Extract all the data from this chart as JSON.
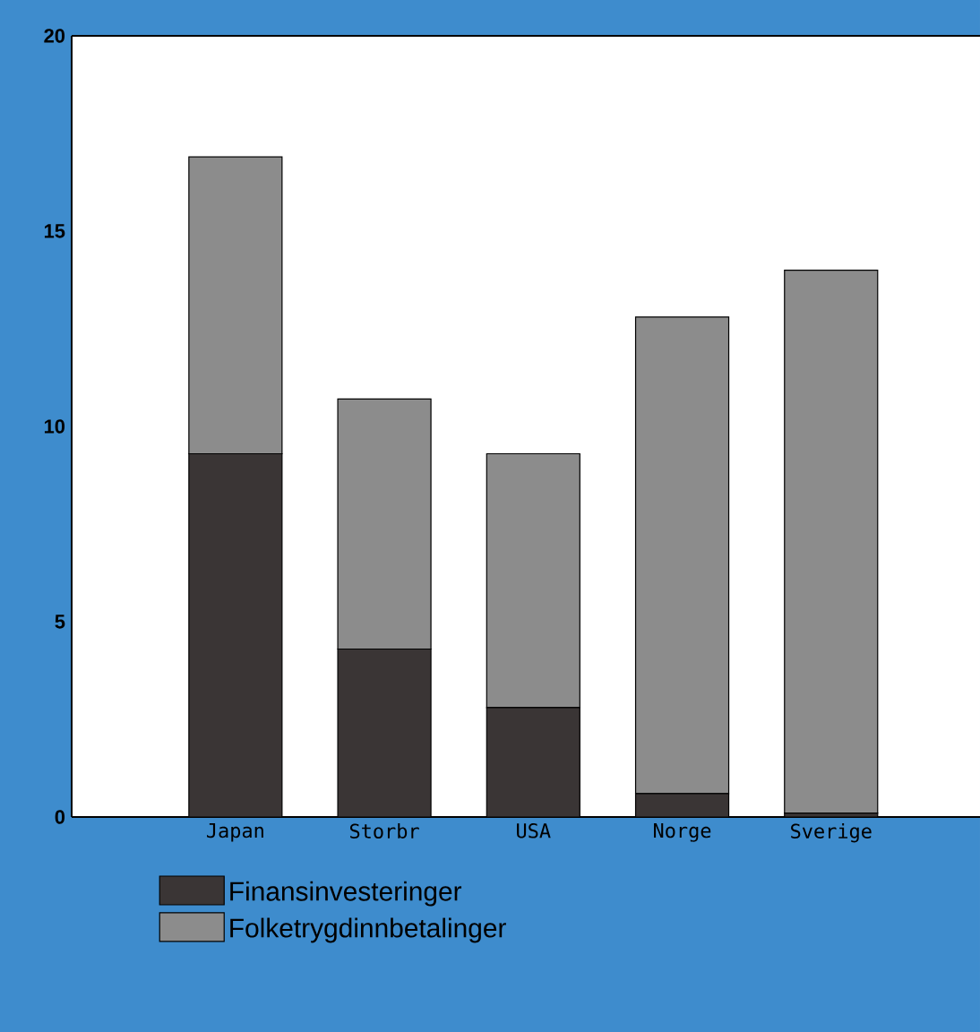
{
  "chart_data": {
    "type": "bar",
    "stacked": true,
    "categories": [
      "Japan",
      "Storbr",
      "USA",
      "Norge",
      "Sverige"
    ],
    "series": [
      {
        "name": "Finansinvesteringer",
        "color": "#3a3535",
        "values": [
          9.3,
          4.3,
          2.8,
          0.6,
          0.1
        ]
      },
      {
        "name": "Folketrygdinnbetalinger",
        "color": "#8c8c8c",
        "values": [
          7.6,
          6.4,
          6.5,
          12.2,
          13.9
        ]
      }
    ],
    "ylim": [
      0,
      20
    ],
    "yticks": [
      0,
      5,
      10,
      15,
      20
    ],
    "legend": "bottom",
    "grid": false
  }
}
